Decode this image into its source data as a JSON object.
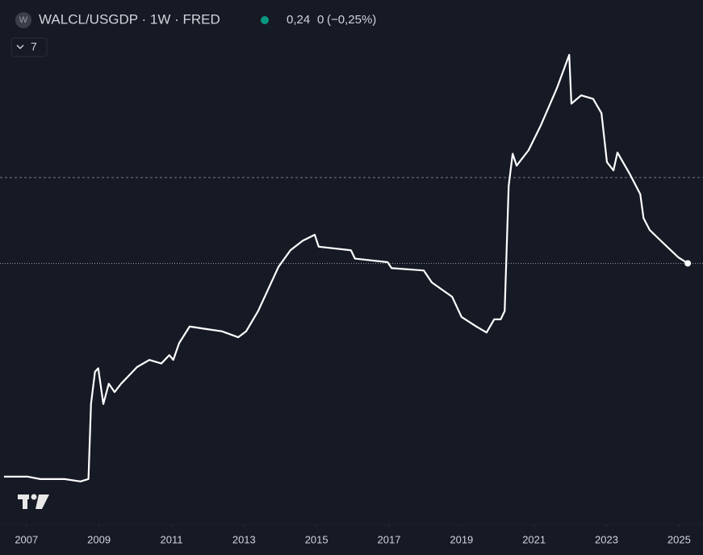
{
  "chart_data": {
    "type": "line",
    "logo_letter": "W",
    "title": "WALCL/USGDP · 1W · FRED",
    "legend_value": "0,24",
    "change": "0",
    "change_pct": "(−0,25%)",
    "indicator_count": "7",
    "x": [
      2006.38,
      2007.04,
      2007.38,
      2008.05,
      2008.49,
      2008.71,
      2008.78,
      2008.89,
      2008.98,
      2009.12,
      2009.27,
      2009.43,
      2009.61,
      2009.83,
      2010.05,
      2010.39,
      2010.72,
      2010.94,
      2011.05,
      2011.21,
      2011.5,
      2011.94,
      2012.39,
      2012.84,
      2013.06,
      2013.39,
      2013.95,
      2014.28,
      2014.62,
      2014.95,
      2015.06,
      2015.95,
      2016.06,
      2016.96,
      2017.07,
      2017.96,
      2018.18,
      2018.74,
      2019.0,
      2019.41,
      2019.69,
      2019.9,
      2020.08,
      2020.19,
      2020.3,
      2020.41,
      2020.52,
      2020.85,
      2021.19,
      2021.63,
      2021.97,
      2022.03,
      2022.3,
      2022.63,
      2022.86,
      2023.01,
      2023.19,
      2023.3,
      2023.64,
      2023.93,
      2024.02,
      2024.19,
      2024.53,
      2024.98,
      2025.24
    ],
    "series": [
      {
        "name": "WALCL/USGDP",
        "color": "#ffffff",
        "values": [
          0.061,
          0.061,
          0.059,
          0.059,
          0.057,
          0.059,
          0.122,
          0.149,
          0.152,
          0.122,
          0.139,
          0.132,
          0.139,
          0.146,
          0.153,
          0.159,
          0.156,
          0.163,
          0.159,
          0.173,
          0.187,
          0.185,
          0.183,
          0.178,
          0.183,
          0.2,
          0.237,
          0.251,
          0.259,
          0.264,
          0.254,
          0.251,
          0.244,
          0.241,
          0.236,
          0.234,
          0.224,
          0.212,
          0.195,
          0.187,
          0.182,
          0.193,
          0.193,
          0.2,
          0.305,
          0.332,
          0.322,
          0.335,
          0.356,
          0.387,
          0.415,
          0.374,
          0.381,
          0.378,
          0.366,
          0.325,
          0.318,
          0.333,
          0.315,
          0.298,
          0.278,
          0.268,
          0.258,
          0.245,
          0.24
        ]
      }
    ],
    "xlim": [
      2006.27,
      2025.66
    ],
    "xticks": [
      2007,
      2009,
      2011,
      2013,
      2015,
      2017,
      2019,
      2021,
      2023,
      2025
    ],
    "ylim": [
      0.021,
      0.461
    ],
    "hlines": [
      0.312
    ],
    "status_color": "#089981"
  }
}
